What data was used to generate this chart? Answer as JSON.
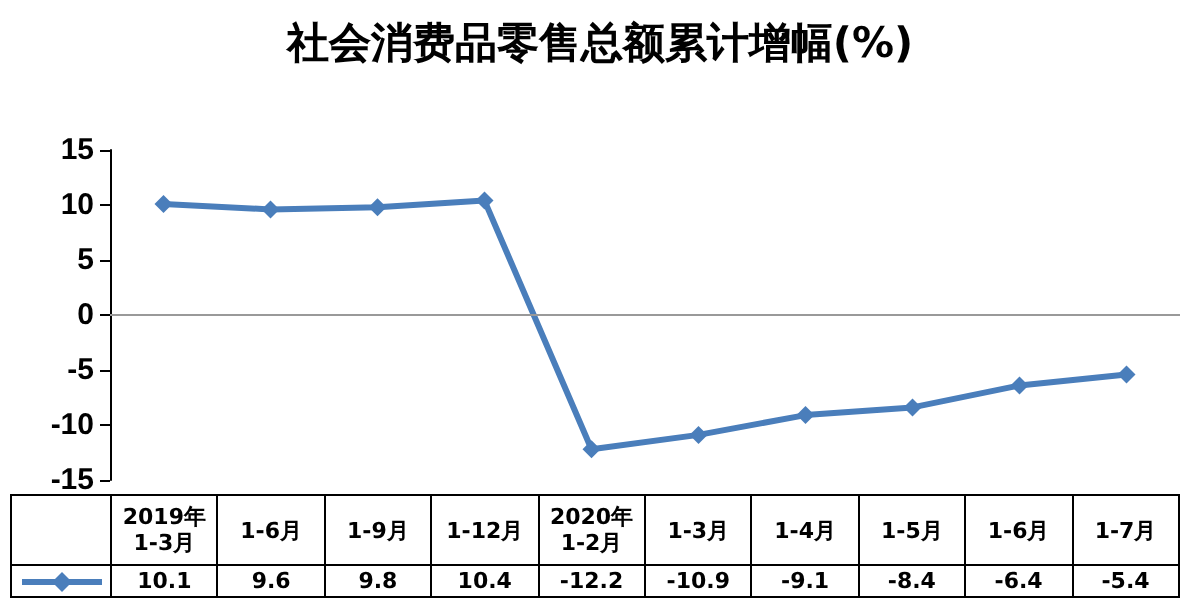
{
  "chart_data": {
    "type": "line",
    "title": "社会消费品零售总额累计增幅(%)",
    "categories": [
      "2019年\n1-3月",
      "1-6月",
      "1-9月",
      "1-12月",
      "2020年\n1-2月",
      "1-3月",
      "1-4月",
      "1-5月",
      "1-6月",
      "1-7月"
    ],
    "series": [
      {
        "color": "#4a7ebb",
        "values": [
          10.1,
          9.6,
          9.8,
          10.4,
          -12.2,
          -10.9,
          -9.1,
          -8.4,
          -6.4,
          -5.4
        ]
      }
    ],
    "ylim": [
      -15,
      15
    ],
    "yticks": [
      -15,
      -10,
      -5,
      0,
      5,
      10,
      15
    ],
    "ref_lines": [
      {
        "axis": "y",
        "value": 0,
        "color": "#999999"
      }
    ],
    "marker": "diamond",
    "line_style": "solid",
    "grid": false,
    "data_labels": true
  }
}
